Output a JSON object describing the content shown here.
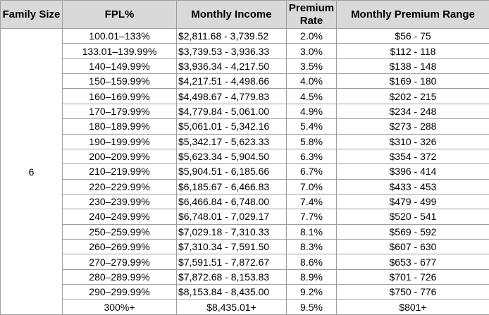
{
  "colors": {
    "header_bg": "#d9d9d9",
    "border": "#9e9e9e",
    "text": "#000000"
  },
  "chart_data": {
    "type": "table",
    "columns": [
      "Family Size",
      "FPL%",
      "Monthly Income",
      "Premium Rate",
      "Monthly Premium Range"
    ],
    "family_size": "6",
    "rows": [
      {
        "fpl": "100.01–133%",
        "income": "$2,811.68 - 3,739.52",
        "rate": "2.0%",
        "range": "$56 - 75"
      },
      {
        "fpl": "133.01–139.99%",
        "income": "$3,739.53 - 3,936.33",
        "rate": "3.0%",
        "range": "$112 - 118"
      },
      {
        "fpl": "140–149.99%",
        "income": "$3,936.34 - 4,217.50",
        "rate": "3.5%",
        "range": "$138 - 148"
      },
      {
        "fpl": "150–159.99%",
        "income": "$4,217.51 - 4,498.66",
        "rate": "4.0%",
        "range": "$169 - 180"
      },
      {
        "fpl": "160–169.99%",
        "income": "$4,498.67 - 4,779.83",
        "rate": "4.5%",
        "range": "$202 - 215"
      },
      {
        "fpl": "170–179.99%",
        "income": "$4,779.84 - 5,061.00",
        "rate": "4.9%",
        "range": "$234 - 248"
      },
      {
        "fpl": "180–189.99%",
        "income": "$5,061.01 - 5,342.16",
        "rate": "5.4%",
        "range": "$273 - 288"
      },
      {
        "fpl": "190–199.99%",
        "income": "$5,342.17 - 5,623.33",
        "rate": "5.8%",
        "range": "$310 - 326"
      },
      {
        "fpl": "200–209.99%",
        "income": "$5,623.34 - 5,904.50",
        "rate": "6.3%",
        "range": "$354 - 372"
      },
      {
        "fpl": "210–219.99%",
        "income": "$5,904.51 - 6,185.66",
        "rate": "6.7%",
        "range": "$396 - 414"
      },
      {
        "fpl": "220–229.99%",
        "income": "$6,185.67 - 6,466.83",
        "rate": "7.0%",
        "range": "$433 - 453"
      },
      {
        "fpl": "230–239.99%",
        "income": "$6,466.84 - 6,748.00",
        "rate": "7.4%",
        "range": "$479 - 499"
      },
      {
        "fpl": "240–249.99%",
        "income": "$6,748.01 - 7,029.17",
        "rate": "7.7%",
        "range": "$520 - 541"
      },
      {
        "fpl": "250–259.99%",
        "income": "$7,029.18 - 7,310.33",
        "rate": "8.1%",
        "range": "$569 - 592"
      },
      {
        "fpl": "260–269.99%",
        "income": "$7,310.34 - 7,591.50",
        "rate": "8.3%",
        "range": "$607 - 630"
      },
      {
        "fpl": "270–279.99%",
        "income": "$7,591.51 - 7,872.67",
        "rate": "8.6%",
        "range": "$653 - 677"
      },
      {
        "fpl": "280–289.99%",
        "income": "$7,872.68 - 8,153.83",
        "rate": "8.9%",
        "range": "$701 - 726"
      },
      {
        "fpl": "290–299.99%",
        "income": "$8,153.84 - 8,435.00",
        "rate": "9.2%",
        "range": "$750 - 776"
      },
      {
        "fpl": "300%+",
        "income": "$8,435.01+",
        "rate": "9.5%",
        "range": "$801+"
      }
    ]
  }
}
